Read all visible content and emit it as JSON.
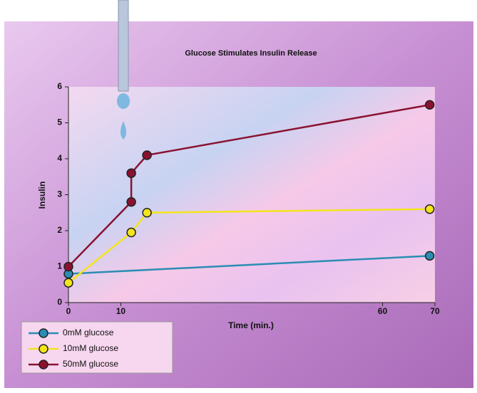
{
  "chart_data": {
    "type": "line",
    "title": "Glucose Stimulates Insulin Release",
    "x_label": "Time (min.)",
    "y_label": "Insulin",
    "xlim": [
      0,
      70
    ],
    "xticks": [
      0,
      10,
      60,
      70
    ],
    "ylim": [
      0,
      6
    ],
    "yticks": [
      0,
      1,
      2,
      3,
      4,
      5,
      6
    ],
    "legend": "bottom-left",
    "series": [
      {
        "name": "0mM glucose",
        "color": "#2b8db3",
        "x": [
          0,
          69
        ],
        "values": [
          0.8,
          1.3
        ]
      },
      {
        "name": "10mM glucose",
        "color": "#f4e41c",
        "x": [
          0,
          12,
          15,
          69
        ],
        "values": [
          0.55,
          1.95,
          2.5,
          2.6
        ]
      },
      {
        "name": "50mM glucose",
        "color": "#8a1230",
        "x": [
          0,
          12,
          12,
          15,
          69
        ],
        "values": [
          1.0,
          2.8,
          3.6,
          4.1,
          5.5
        ]
      }
    ]
  }
}
